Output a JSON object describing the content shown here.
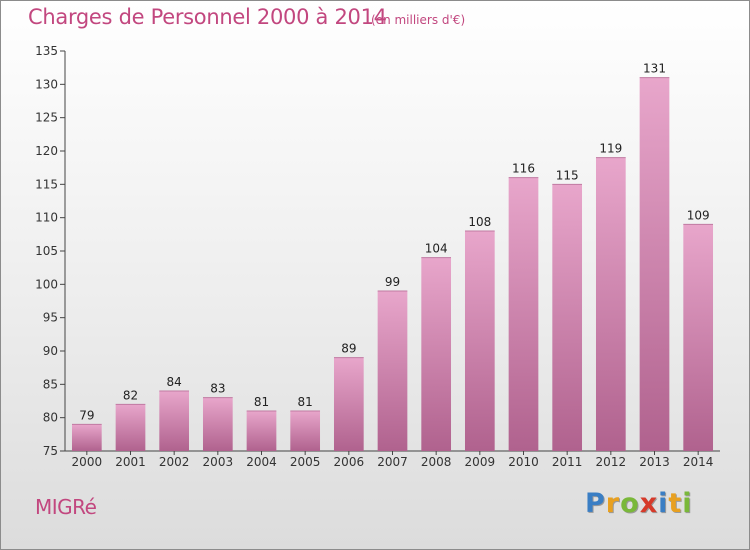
{
  "chart_data": {
    "type": "bar",
    "title": "Charges de Personnel 2000 à 2014",
    "subtitle": "(en milliers d'€)",
    "categories": [
      "2000",
      "2001",
      "2002",
      "2003",
      "2004",
      "2005",
      "2006",
      "2007",
      "2008",
      "2009",
      "2010",
      "2011",
      "2012",
      "2013",
      "2014"
    ],
    "values": [
      79,
      82,
      84,
      83,
      81,
      81,
      89,
      99,
      104,
      108,
      116,
      115,
      119,
      131,
      109
    ],
    "ylim": [
      75,
      135
    ],
    "yticks": [
      75,
      80,
      85,
      90,
      95,
      100,
      105,
      110,
      115,
      120,
      125,
      130,
      135
    ],
    "xlabel": "",
    "ylabel": "",
    "grid": false,
    "bar_color": "#d98fb8"
  },
  "footer": {
    "location": "MIGRé",
    "logo_letters": [
      "P",
      "r",
      "o",
      "x",
      "i",
      "t",
      "i"
    ],
    "logo_colors": [
      "#3a7ec4",
      "#e8a020",
      "#7ab83a",
      "#d63a2a",
      "#3a7ec4",
      "#e8a020",
      "#7ab83a"
    ]
  },
  "colors": {
    "title": "#c2477f",
    "axis": "#444444"
  }
}
